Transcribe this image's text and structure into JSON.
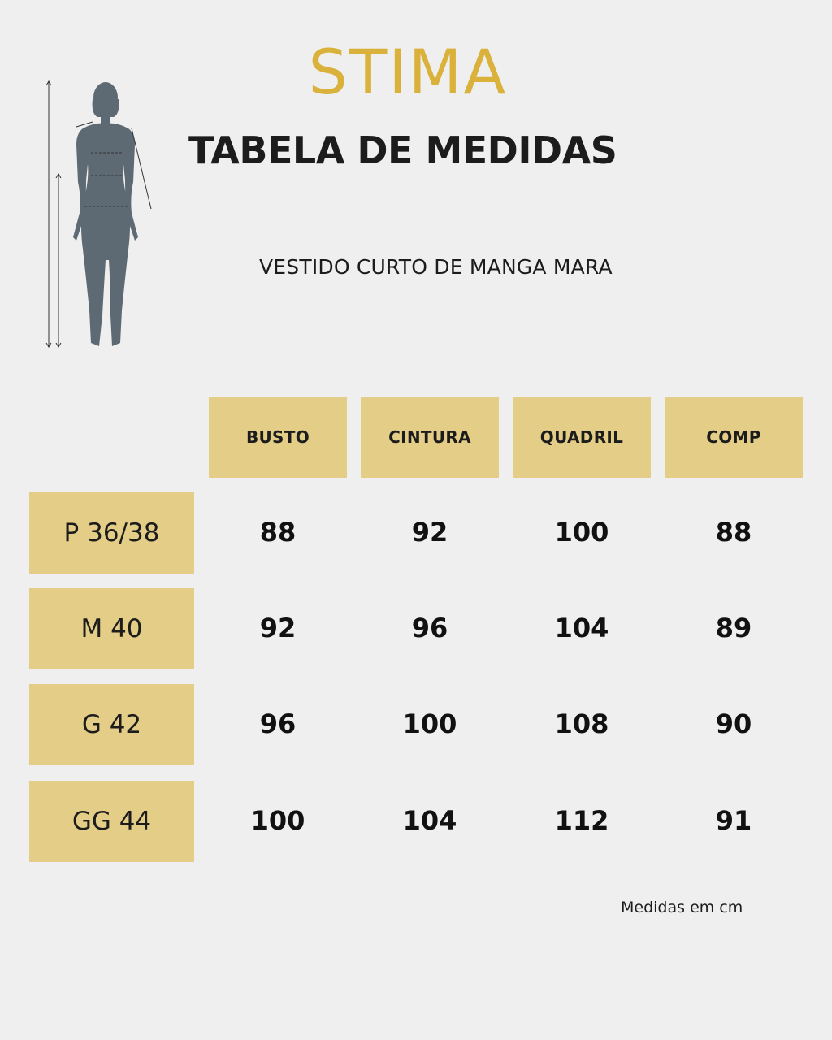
{
  "brand": "STIMA",
  "title": "TABELA DE MEDIDAS",
  "subtitle": "VESTIDO CURTO DE MANGA MARA",
  "figure_icon": "body-measurement-silhouette",
  "colors": {
    "accent": "#e3cd87",
    "logo": "#d9b13b",
    "background": "#efefef",
    "silhouette": "#5d6a73"
  },
  "table": {
    "headers": [
      "BUSTO",
      "CINTURA",
      "QUADRIL",
      "COMP"
    ],
    "rows": [
      {
        "size": "P 36/38",
        "values": [
          "88",
          "92",
          "100",
          "88"
        ]
      },
      {
        "size": "M 40",
        "values": [
          "92",
          "96",
          "104",
          "89"
        ]
      },
      {
        "size": "G 42",
        "values": [
          "96",
          "100",
          "108",
          "90"
        ]
      },
      {
        "size": "GG 44",
        "values": [
          "100",
          "104",
          "112",
          "91"
        ]
      }
    ]
  },
  "note": "Medidas em cm"
}
